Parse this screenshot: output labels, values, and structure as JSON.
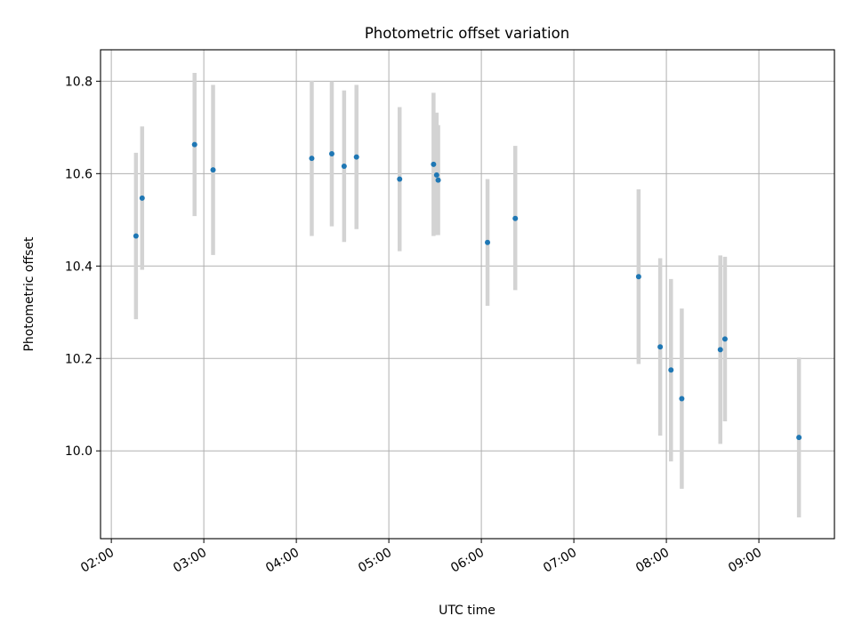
{
  "chart_data": {
    "type": "scatter",
    "title": "Photometric offset variation",
    "xlabel": "UTC time",
    "ylabel": "Photometric offset",
    "xlim": [
      "01:53",
      "09:49"
    ],
    "ylim": [
      9.81,
      10.868
    ],
    "grid": true,
    "x_ticks": [
      "02:00",
      "03:00",
      "04:00",
      "05:00",
      "06:00",
      "07:00",
      "08:00",
      "09:00"
    ],
    "y_ticks": [
      10.0,
      10.2,
      10.4,
      10.6,
      10.8
    ],
    "y_tick_labels": [
      "10.0",
      "10.2",
      "10.4",
      "10.6",
      "10.8"
    ],
    "point_color": "#1f77b4",
    "errorbar_color": "#d3d3d3",
    "points": [
      {
        "x": "02:16",
        "y": 10.465,
        "yerr_low": 10.285,
        "yerr_high": 10.645
      },
      {
        "x": "02:20",
        "y": 10.547,
        "yerr_low": 10.392,
        "yerr_high": 10.702
      },
      {
        "x": "02:54",
        "y": 10.663,
        "yerr_low": 10.508,
        "yerr_high": 10.818
      },
      {
        "x": "03:06",
        "y": 10.608,
        "yerr_low": 10.424,
        "yerr_high": 10.792
      },
      {
        "x": "04:10",
        "y": 10.633,
        "yerr_low": 10.465,
        "yerr_high": 10.801
      },
      {
        "x": "04:23",
        "y": 10.643,
        "yerr_low": 10.486,
        "yerr_high": 10.8
      },
      {
        "x": "04:31",
        "y": 10.616,
        "yerr_low": 10.452,
        "yerr_high": 10.78
      },
      {
        "x": "04:39",
        "y": 10.636,
        "yerr_low": 10.48,
        "yerr_high": 10.792
      },
      {
        "x": "05:07",
        "y": 10.588,
        "yerr_low": 10.432,
        "yerr_high": 10.744
      },
      {
        "x": "05:29",
        "y": 10.62,
        "yerr_low": 10.465,
        "yerr_high": 10.775
      },
      {
        "x": "05:31",
        "y": 10.597,
        "yerr_low": 10.467,
        "yerr_high": 10.732
      },
      {
        "x": "05:32",
        "y": 10.586,
        "yerr_low": 10.467,
        "yerr_high": 10.705
      },
      {
        "x": "06:04",
        "y": 10.451,
        "yerr_low": 10.314,
        "yerr_high": 10.588
      },
      {
        "x": "06:22",
        "y": 10.503,
        "yerr_low": 10.348,
        "yerr_high": 10.66
      },
      {
        "x": "07:42",
        "y": 10.377,
        "yerr_low": 10.188,
        "yerr_high": 10.566
      },
      {
        "x": "07:56",
        "y": 10.225,
        "yerr_low": 10.033,
        "yerr_high": 10.417
      },
      {
        "x": "08:03",
        "y": 10.175,
        "yerr_low": 9.977,
        "yerr_high": 10.372
      },
      {
        "x": "08:10",
        "y": 10.113,
        "yerr_low": 9.918,
        "yerr_high": 10.308
      },
      {
        "x": "08:35",
        "y": 10.219,
        "yerr_low": 10.015,
        "yerr_high": 10.423
      },
      {
        "x": "08:38",
        "y": 10.242,
        "yerr_low": 10.064,
        "yerr_high": 10.42
      },
      {
        "x": "09:26",
        "y": 10.029,
        "yerr_low": 9.856,
        "yerr_high": 10.202
      }
    ]
  }
}
